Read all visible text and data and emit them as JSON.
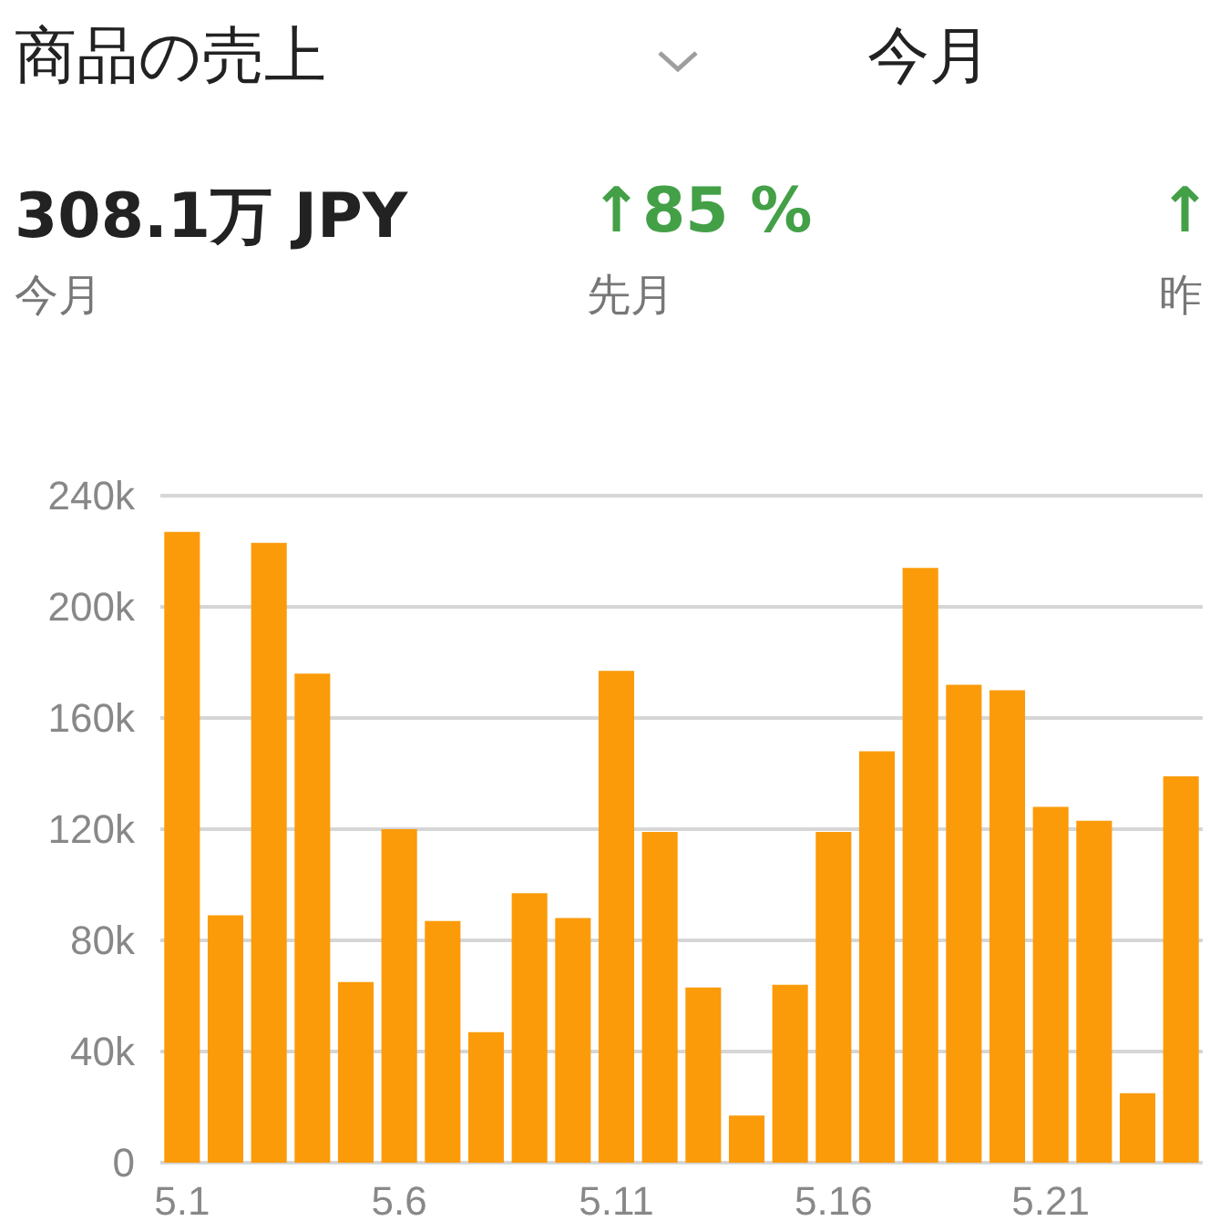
{
  "chart_data": {
    "type": "bar",
    "title": "商品の売上",
    "annotations": [
      "今月",
      "308.1万 JPY",
      "今月",
      "↑85 %",
      "先月",
      "↑",
      "昨"
    ],
    "categories": [
      "5.1",
      null,
      null,
      null,
      null,
      "5.6",
      null,
      null,
      null,
      null,
      "5.11",
      null,
      null,
      null,
      null,
      "5.16",
      null,
      null,
      null,
      null,
      "5.21",
      null,
      null,
      null
    ],
    "values": [
      227000,
      89000,
      223000,
      176000,
      65000,
      120000,
      87000,
      47000,
      97000,
      88000,
      177000,
      119000,
      63000,
      17000,
      64000,
      119000,
      148000,
      214000,
      172000,
      170000,
      128000,
      123000,
      25000,
      139000
    ],
    "color": "#fb9b0a",
    "ylim": [
      0,
      240000
    ],
    "yticks": [
      {
        "value": 0,
        "label": "0"
      },
      {
        "value": 40000,
        "label": "40k"
      },
      {
        "value": 80000,
        "label": "80k"
      },
      {
        "value": 120000,
        "label": "120k"
      },
      {
        "value": 160000,
        "label": "160k"
      },
      {
        "value": 200000,
        "label": "200k"
      },
      {
        "value": 240000,
        "label": "240k"
      }
    ],
    "grid": "y"
  }
}
